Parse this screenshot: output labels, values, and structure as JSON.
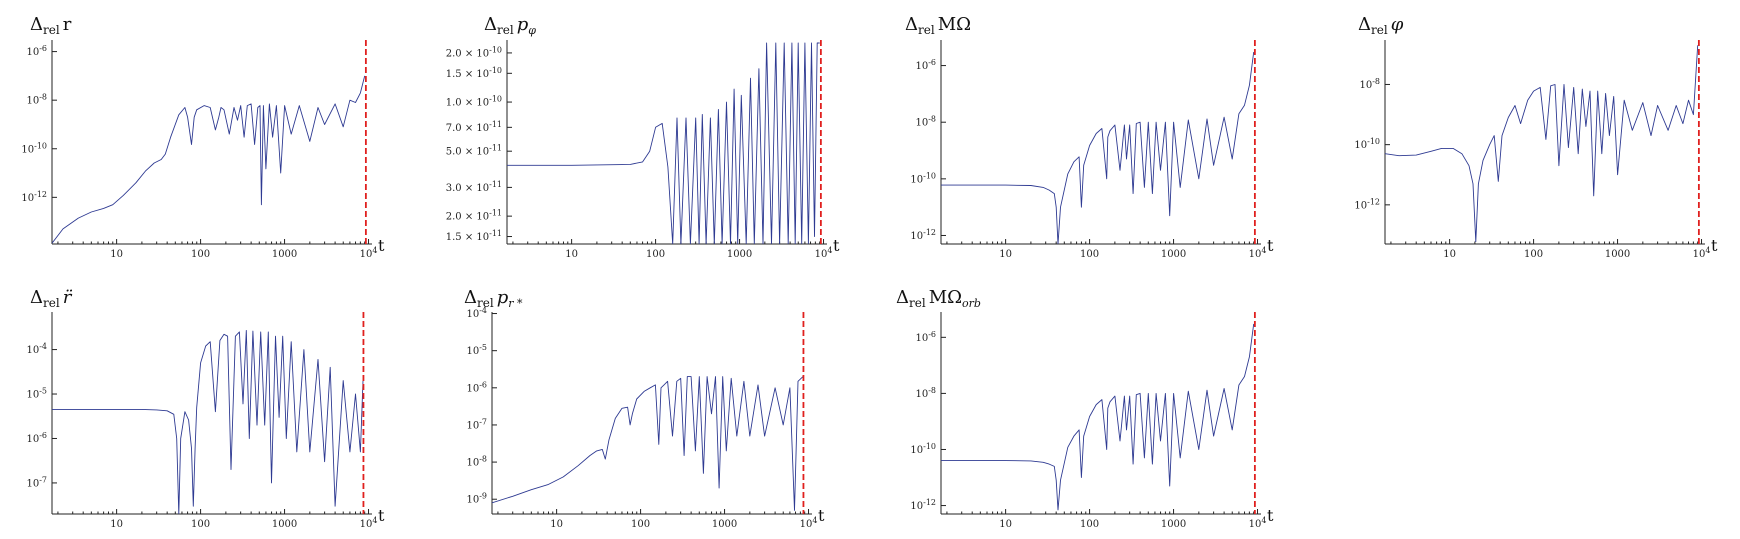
{
  "chart_data": [
    {
      "type": "line",
      "title": "Δrel r",
      "title_main": "Δ",
      "title_sub": "rel",
      "title_var": "r",
      "xlabel": "t",
      "x_scale": "log",
      "y_scale": "log",
      "xlim": [
        1.7,
        11000
      ],
      "ylim": [
        1.2e-14,
        3e-06
      ],
      "x_tick_labels": [
        "10",
        "100",
        "1000",
        "10^4"
      ],
      "x_ticks": [
        10,
        100,
        1000,
        10000
      ],
      "y_tick_labels": [
        "10^-6",
        "10^-8",
        "10^-10",
        "10^-12"
      ],
      "y_ticks": [
        1e-06,
        1e-08,
        1e-10,
        1e-12
      ],
      "end_marker_x": 9300,
      "series": [
        {
          "x": [
            1.7,
            2.3,
            3.5,
            5,
            7,
            9,
            12,
            17,
            22,
            28,
            34,
            38,
            44,
            55,
            65,
            70,
            78,
            84,
            90,
            110,
            130,
            150,
            165,
            175,
            190,
            220,
            250,
            275,
            300,
            330,
            360,
            400,
            440,
            480,
            510,
            530,
            560,
            600,
            660,
            720,
            800,
            900,
            1000,
            1200,
            1500,
            2000,
            2500,
            3000,
            4000,
            5000,
            6000,
            7000,
            8000,
            9000
          ],
          "y": [
            1.3e-14,
            5e-14,
            1.4e-13,
            2.5e-13,
            3.5e-13,
            5e-13,
            1.2e-12,
            4e-12,
            1.2e-11,
            2.6e-11,
            3.6e-11,
            6e-11,
            3e-10,
            2.5e-09,
            5e-09,
            2e-09,
            1.5e-10,
            2e-09,
            4e-09,
            6e-09,
            5e-09,
            6e-10,
            2e-09,
            5e-09,
            4e-09,
            4e-10,
            5e-09,
            1.5e-09,
            6e-09,
            3e-10,
            6e-09,
            7e-09,
            1.5e-10,
            5e-09,
            6e-09,
            5e-13,
            6e-09,
            1.5e-11,
            7e-09,
            3e-10,
            6e-09,
            1e-11,
            6e-09,
            4e-10,
            6e-09,
            2e-10,
            5e-09,
            1e-09,
            7e-09,
            8e-10,
            1e-08,
            8e-09,
            2e-08,
            1e-07
          ]
        }
      ]
    },
    {
      "type": "line",
      "title": "Δrel pφ",
      "title_main": "Δ",
      "title_sub": "rel",
      "title_var": "p",
      "title_var_sub": "φ",
      "xlabel": "t",
      "x_scale": "log",
      "y_scale": "log",
      "xlim": [
        1.7,
        11000
      ],
      "ylim": [
        1.35e-11,
        2.4e-10
      ],
      "x_tick_labels": [
        "10",
        "100",
        "1000",
        "10^4"
      ],
      "x_ticks": [
        10,
        100,
        1000,
        10000
      ],
      "y_tick_labels": [
        "2.0 × 10^-10",
        "1.5 × 10^-10",
        "1.0 × 10^-10",
        "7.0 × 10^-11",
        "5.0 × 10^-11",
        "3.0 × 10^-11",
        "2.0 × 10^-11",
        "1.5 × 10^-11"
      ],
      "y_ticks": [
        2e-10,
        1.5e-10,
        1e-10,
        7e-11,
        5e-11,
        3e-11,
        2e-11,
        1.5e-11
      ],
      "end_marker_x": 9300,
      "series": [
        {
          "x": [
            1.7,
            10,
            50,
            70,
            85,
            100,
            120,
            140,
            160,
            180,
            200,
            230,
            260,
            300,
            330,
            360,
            400,
            450,
            500,
            560,
            620,
            700,
            780,
            860,
            950,
            1050,
            1200,
            1350,
            1500,
            1700,
            1900,
            2100,
            2400,
            2700,
            3000,
            3400,
            3800,
            4200,
            4600,
            5000,
            5500,
            6000,
            6600,
            7200,
            7800,
            8400,
            9000
          ],
          "y": [
            4.1e-11,
            4.1e-11,
            4.15e-11,
            4.3e-11,
            5e-11,
            7e-11,
            7.4e-11,
            4e-11,
            1.3e-11,
            8e-11,
            1.3e-11,
            8e-11,
            1.3e-11,
            8e-11,
            1.3e-11,
            8.4e-11,
            1.3e-11,
            8e-11,
            1.3e-11,
            9e-11,
            1.3e-11,
            1e-10,
            1.3e-11,
            1.2e-10,
            1.3e-11,
            1.1e-10,
            1.3e-11,
            1.4e-10,
            1.3e-11,
            1.6e-10,
            1.3e-11,
            2.3e-10,
            1.3e-11,
            2.3e-10,
            1.3e-11,
            2.3e-10,
            1.3e-11,
            2.3e-10,
            1.3e-11,
            2.3e-10,
            1.3e-11,
            2.3e-10,
            1.3e-11,
            2.3e-10,
            1.5e-11,
            2.3e-10,
            2.3e-10
          ]
        }
      ]
    },
    {
      "type": "line",
      "title": "Δrel MΩ",
      "title_main": "Δ",
      "title_sub": "rel",
      "title_var": "MΩ",
      "xlabel": "t",
      "x_scale": "log",
      "y_scale": "log",
      "xlim": [
        1.7,
        11000
      ],
      "ylim": [
        5e-13,
        8e-06
      ],
      "x_tick_labels": [
        "10",
        "100",
        "1000",
        "10^4"
      ],
      "x_ticks": [
        10,
        100,
        1000,
        10000
      ],
      "y_tick_labels": [
        "10^-6",
        "10^-8",
        "10^-10",
        "10^-12"
      ],
      "y_ticks": [
        1e-06,
        1e-08,
        1e-10,
        1e-12
      ],
      "end_marker_x": 9300,
      "series": [
        {
          "x": [
            1.7,
            10,
            20,
            28,
            33,
            38,
            40,
            42,
            45,
            55,
            65,
            75,
            80,
            85,
            100,
            120,
            140,
            160,
            165,
            175,
            200,
            230,
            260,
            275,
            300,
            330,
            360,
            400,
            450,
            500,
            560,
            620,
            700,
            800,
            900,
            1000,
            1200,
            1500,
            2000,
            2500,
            3000,
            4000,
            5000,
            6000,
            7000,
            8000,
            9000
          ],
          "y": [
            6e-11,
            6e-11,
            5.8e-11,
            5e-11,
            4e-11,
            3e-11,
            1e-11,
            5e-13,
            1e-11,
            1.5e-10,
            4e-10,
            6e-10,
            1e-11,
            3e-10,
            1.5e-09,
            4e-09,
            6e-09,
            1e-10,
            3e-09,
            5e-09,
            8e-09,
            2e-10,
            8e-09,
            5e-10,
            8e-09,
            3e-11,
            9e-09,
            1e-08,
            5e-11,
            1e-08,
            3e-11,
            1e-08,
            2e-10,
            1e-08,
            5e-12,
            1e-08,
            5e-11,
            1.2e-08,
            1e-10,
            1.3e-08,
            3e-10,
            1.5e-08,
            5e-10,
            2e-08,
            4e-08,
            2e-07,
            3e-06
          ]
        }
      ]
    },
    {
      "type": "line",
      "title": "Δrel φ",
      "title_main": "Δ",
      "title_sub": "rel",
      "title_var": "φ",
      "xlabel": "t",
      "x_scale": "log",
      "y_scale": "log",
      "xlim": [
        1.7,
        11000
      ],
      "ylim": [
        5e-14,
        3e-07
      ],
      "x_tick_labels": [
        "10",
        "100",
        "1000",
        "10^4"
      ],
      "x_ticks": [
        10,
        100,
        1000,
        10000
      ],
      "y_tick_labels": [
        "10^-8",
        "10^-10",
        "10^-12"
      ],
      "y_ticks": [
        1e-08,
        1e-10,
        1e-12
      ],
      "end_marker_x": 9300,
      "series": [
        {
          "x": [
            1.7,
            2.5,
            4,
            6,
            8,
            11,
            14,
            17,
            19,
            20.5,
            22,
            25,
            30,
            34,
            38,
            42,
            50,
            60,
            70,
            85,
            100,
            120,
            140,
            160,
            180,
            200,
            230,
            260,
            300,
            340,
            380,
            420,
            470,
            520,
            580,
            650,
            720,
            800,
            900,
            1000,
            1200,
            1500,
            2000,
            2500,
            3000,
            4000,
            5000,
            6000,
            7000,
            8000,
            9000
          ],
          "y": [
            5e-11,
            4.3e-11,
            4.5e-11,
            6e-11,
            7.5e-11,
            7.5e-11,
            5e-11,
            2e-11,
            5e-12,
            6e-14,
            5e-12,
            3e-11,
            1e-10,
            2e-10,
            6e-12,
            2e-10,
            8e-10,
            2e-09,
            5e-10,
            3e-09,
            6e-09,
            8e-09,
            1.5e-10,
            9e-09,
            1e-08,
            2e-11,
            1e-08,
            8e-11,
            8e-09,
            5e-11,
            7e-09,
            4e-10,
            6e-09,
            2e-12,
            6e-09,
            5e-11,
            5e-09,
            2e-10,
            4e-09,
            1e-11,
            3e-09,
            3e-10,
            2.5e-09,
            2e-10,
            2e-09,
            3e-10,
            2e-09,
            5e-10,
            3e-09,
            1e-09,
            2e-07
          ]
        }
      ]
    },
    {
      "type": "line",
      "title": "Δrel r̈",
      "title_main": "Δ",
      "title_sub": "rel",
      "title_var": "r̈",
      "xlabel": "t",
      "x_scale": "log",
      "y_scale": "log",
      "xlim": [
        1.7,
        11000
      ],
      "ylim": [
        2e-08,
        0.0007
      ],
      "x_tick_labels": [
        "10",
        "100",
        "1000",
        "10^4"
      ],
      "x_ticks": [
        10,
        100,
        1000,
        10000
      ],
      "y_tick_labels": [
        "10^-4",
        "10^-5",
        "10^-6",
        "10^-7"
      ],
      "y_ticks": [
        0.0001,
        1e-05,
        1e-06,
        1e-07
      ],
      "end_marker_x": 8700,
      "series": [
        {
          "x": [
            1.7,
            10,
            20,
            30,
            40,
            48,
            52,
            55,
            58,
            65,
            72,
            78,
            82,
            86,
            90,
            100,
            115,
            130,
            150,
            170,
            190,
            210,
            230,
            260,
            290,
            320,
            350,
            380,
            420,
            470,
            520,
            580,
            640,
            700,
            780,
            860,
            950,
            1050,
            1200,
            1400,
            1700,
            2000,
            2500,
            3000,
            3500,
            4000,
            5000,
            6000,
            7000,
            8000,
            8600
          ],
          "y": [
            4.5e-06,
            4.5e-06,
            4.5e-06,
            4.4e-06,
            4.2e-06,
            3.5e-06,
            1e-06,
            2e-08,
            1e-06,
            4e-06,
            2.6e-06,
            6e-07,
            3e-08,
            6e-07,
            5e-06,
            5e-05,
            0.00012,
            0.00015,
            4e-06,
            0.00016,
            0.00022,
            0.0002,
            2e-07,
            0.0002,
            0.00025,
            6e-06,
            0.00027,
            1e-06,
            0.00026,
            2e-06,
            0.00025,
            2e-06,
            0.00025,
            1e-07,
            0.0002,
            3e-06,
            0.0002,
            1e-06,
            0.00015,
            5e-07,
            0.0001,
            5e-07,
            6e-05,
            3e-07,
            4e-05,
            3e-08,
            2e-05,
            5e-07,
            1e-05,
            5e-07,
            2e-05
          ]
        }
      ]
    },
    {
      "type": "line",
      "title": "Δrel pr*",
      "title_main": "Δ",
      "title_sub": "rel",
      "title_var": "p",
      "title_var_sub": "r *",
      "xlabel": "t",
      "x_scale": "log",
      "y_scale": "log",
      "xlim": [
        1.7,
        11000
      ],
      "ylim": [
        4e-10,
        0.00011
      ],
      "x_tick_labels": [
        "10",
        "100",
        "1000",
        "10^4"
      ],
      "x_ticks": [
        10,
        100,
        1000,
        10000
      ],
      "y_tick_labels": [
        "10^-4",
        "10^-5",
        "10^-6",
        "10^-7",
        "10^-8",
        "10^-9"
      ],
      "y_ticks": [
        0.0001,
        1e-05,
        1e-06,
        1e-07,
        1e-08,
        1e-09
      ],
      "end_marker_x": 8700,
      "series": [
        {
          "x": [
            1.7,
            3,
            5,
            8,
            12,
            18,
            25,
            30,
            35,
            38,
            42,
            50,
            60,
            70,
            75,
            80,
            90,
            110,
            130,
            150,
            165,
            175,
            190,
            210,
            240,
            270,
            300,
            330,
            360,
            400,
            450,
            500,
            560,
            620,
            700,
            780,
            860,
            950,
            1050,
            1200,
            1400,
            1700,
            2000,
            2500,
            3000,
            4000,
            5000,
            6000,
            6800,
            7500,
            8600
          ],
          "y": [
            8e-10,
            1.2e-09,
            1.8e-09,
            2.5e-09,
            4e-09,
            8e-09,
            1.5e-08,
            2e-08,
            2.2e-08,
            1.2e-08,
            4e-08,
            1.5e-07,
            2.8e-07,
            3e-07,
            1e-07,
            2e-07,
            5e-07,
            8e-07,
            1e-06,
            1.2e-06,
            3e-08,
            1e-06,
            1.2e-06,
            1.5e-06,
            5e-08,
            1.5e-06,
            1.8e-06,
            1.5e-08,
            2e-06,
            2e-06,
            2e-08,
            2e-06,
            5e-09,
            2e-06,
            2e-07,
            2e-06,
            2e-09,
            2e-06,
            2e-08,
            1.8e-06,
            5e-08,
            1.5e-06,
            5e-08,
            1.2e-06,
            5e-08,
            1e-06,
            1e-07,
            1e-06,
            5e-10,
            1.5e-06,
            2e-06
          ]
        }
      ]
    },
    {
      "type": "line",
      "title": "Δrel MΩorb",
      "title_main": "Δ",
      "title_sub": "rel",
      "title_var": "MΩ",
      "title_var_sub": "orb",
      "xlabel": "t",
      "x_scale": "log",
      "y_scale": "log",
      "xlim": [
        1.7,
        11000
      ],
      "ylim": [
        5e-13,
        8e-06
      ],
      "x_tick_labels": [
        "10",
        "100",
        "1000",
        "10^4"
      ],
      "x_ticks": [
        10,
        100,
        1000,
        10000
      ],
      "y_tick_labels": [
        "10^-6",
        "10^-8",
        "10^-10",
        "10^-12"
      ],
      "y_ticks": [
        1e-06,
        1e-08,
        1e-10,
        1e-12
      ],
      "end_marker_x": 9300,
      "series": [
        {
          "x": [
            1.7,
            10,
            20,
            28,
            33,
            38,
            40,
            42,
            45,
            55,
            65,
            75,
            80,
            85,
            100,
            120,
            140,
            160,
            165,
            175,
            200,
            230,
            260,
            275,
            300,
            330,
            360,
            400,
            450,
            500,
            560,
            620,
            700,
            800,
            900,
            1000,
            1200,
            1500,
            2000,
            2500,
            3000,
            4000,
            5000,
            6000,
            7000,
            8000,
            9000
          ],
          "y": [
            4e-11,
            4e-11,
            3.9e-11,
            3.5e-11,
            3e-11,
            2.5e-11,
            8e-12,
            7e-13,
            8e-12,
            1.2e-10,
            3e-10,
            5e-10,
            1e-11,
            3e-10,
            1.5e-09,
            4e-09,
            6e-09,
            1e-10,
            3e-09,
            5e-09,
            8e-09,
            2e-10,
            8e-09,
            5e-10,
            8e-09,
            3e-11,
            9e-09,
            1e-08,
            5e-11,
            1e-08,
            3e-11,
            1e-08,
            2e-10,
            1e-08,
            5e-12,
            1e-08,
            5e-11,
            1.2e-08,
            1e-10,
            1.3e-08,
            3e-10,
            1.5e-08,
            5e-10,
            2e-08,
            4e-08,
            2e-07,
            3e-06
          ]
        }
      ]
    }
  ]
}
